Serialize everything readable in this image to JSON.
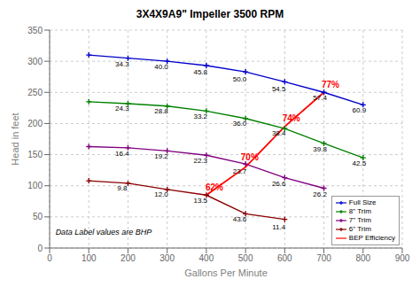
{
  "chart_data": {
    "type": "line",
    "title": "3X4X9A9\" Impeller 3500 RPM",
    "x_label": "Gallons Per Minute",
    "y_label": "Head in feet",
    "xlim": [
      0,
      900
    ],
    "ylim": [
      0,
      350
    ],
    "xticks": [
      0,
      100,
      200,
      300,
      400,
      500,
      600,
      700,
      800,
      900
    ],
    "yticks": [
      0,
      50,
      100,
      150,
      200,
      250,
      300,
      350
    ],
    "grid": true,
    "legend": "lower right",
    "series": [
      {
        "name": "Full Size",
        "color": "#0000cc",
        "marker": "plus",
        "x": [
          100,
          200,
          300,
          400,
          500,
          600,
          700,
          800
        ],
        "values": [
          310,
          305,
          300,
          293,
          283,
          267,
          250,
          230
        ],
        "point_labels": [
          {
            "x": 185,
            "y": 300,
            "text": "34.3"
          },
          {
            "x": 285,
            "y": 295,
            "text": "40.0"
          },
          {
            "x": 385,
            "y": 287,
            "text": "45.8"
          },
          {
            "x": 485,
            "y": 276,
            "text": "50.0"
          },
          {
            "x": 585,
            "y": 260,
            "text": "54.5"
          },
          {
            "x": 690,
            "y": 246,
            "text": "57.4"
          },
          {
            "x": 790,
            "y": 225,
            "text": "60.9"
          }
        ]
      },
      {
        "name": "8\" Trim",
        "color": "#008000",
        "marker": "plus",
        "x": [
          100,
          200,
          300,
          400,
          500,
          600,
          700,
          800
        ],
        "values": [
          235,
          232,
          228,
          220,
          208,
          192,
          168,
          145
        ],
        "point_labels": [
          {
            "x": 185,
            "y": 228,
            "text": "24.3"
          },
          {
            "x": 285,
            "y": 224,
            "text": "28.8"
          },
          {
            "x": 385,
            "y": 216,
            "text": "33.2"
          },
          {
            "x": 485,
            "y": 204,
            "text": "36.0"
          },
          {
            "x": 585,
            "y": 189,
            "text": "38.4"
          },
          {
            "x": 690,
            "y": 163,
            "text": "39.8"
          },
          {
            "x": 790,
            "y": 140,
            "text": "42.5"
          }
        ]
      },
      {
        "name": "7\" Trim",
        "color": "#800080",
        "marker": "plus",
        "x": [
          100,
          200,
          300,
          400,
          500,
          600,
          700
        ],
        "values": [
          163,
          161,
          156,
          149,
          135,
          113,
          96
        ],
        "point_labels": [
          {
            "x": 185,
            "y": 156,
            "text": "16.4"
          },
          {
            "x": 285,
            "y": 152,
            "text": "19.2"
          },
          {
            "x": 385,
            "y": 145,
            "text": "22.3"
          },
          {
            "x": 485,
            "y": 128,
            "text": "23.7"
          },
          {
            "x": 585,
            "y": 108,
            "text": "26.6"
          },
          {
            "x": 690,
            "y": 90,
            "text": "26.2"
          }
        ]
      },
      {
        "name": "6\" Trim",
        "color": "#8B0000",
        "marker": "plus",
        "x": [
          100,
          200,
          300,
          400,
          500,
          600
        ],
        "values": [
          108,
          104,
          94,
          85,
          55,
          46
        ],
        "point_labels": [
          {
            "x": 185,
            "y": 100,
            "text": "9.8"
          },
          {
            "x": 285,
            "y": 90,
            "text": "12.0"
          },
          {
            "x": 385,
            "y": 80,
            "text": "13.5"
          },
          {
            "x": 485,
            "y": 50,
            "text": "43.6"
          },
          {
            "x": 585,
            "y": 38,
            "text": "11.4"
          }
        ]
      },
      {
        "name": "BEP Efficiency",
        "color": "#ff0000",
        "x": [
          400,
          500,
          600,
          700
        ],
        "values": [
          85,
          130,
          195,
          250
        ],
        "point_labels": [
          {
            "x": 398,
            "y": 90,
            "text": "62%"
          },
          {
            "x": 488,
            "y": 138,
            "text": "70%"
          },
          {
            "x": 594,
            "y": 200,
            "text": "74%"
          },
          {
            "x": 694,
            "y": 255,
            "text": "77%"
          }
        ]
      }
    ],
    "annotations": [
      {
        "x": 15,
        "y": 18,
        "text": "Data Label values are BHP"
      }
    ]
  }
}
